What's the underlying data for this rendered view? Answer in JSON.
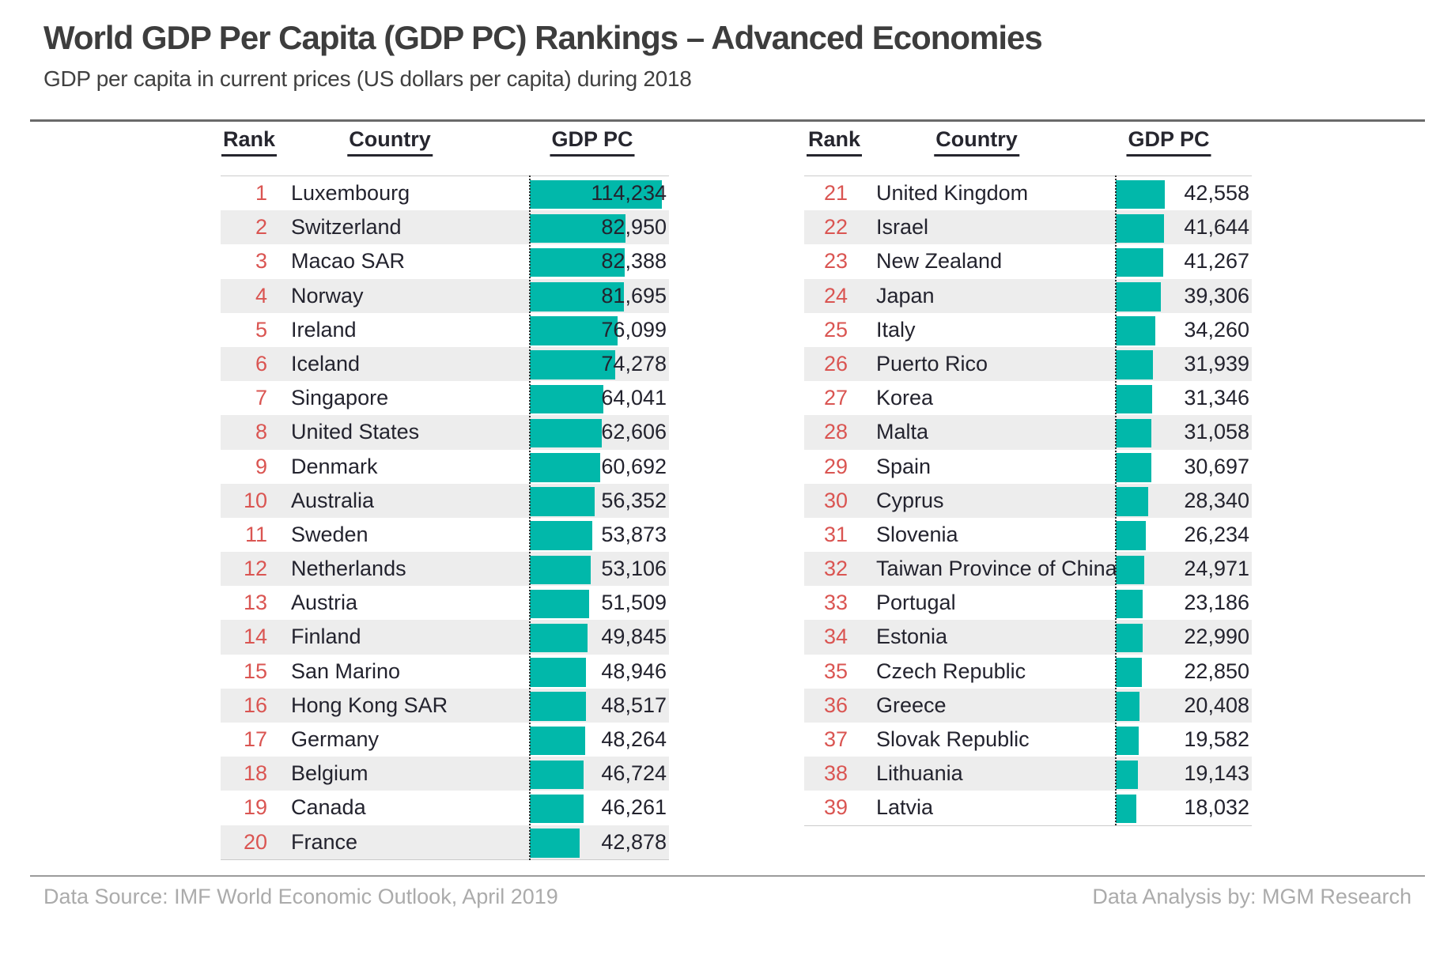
{
  "title": "World GDP Per Capita (GDP PC) Rankings – Advanced Economies",
  "subtitle": "GDP per capita in current prices (US dollars per capita) during 2018",
  "table_headers": {
    "rank": "Rank",
    "country": "Country",
    "gdp_pc": "GDP PC"
  },
  "footer": {
    "source": "Data Source: IMF World Economic Outlook, April 2019",
    "analysis": "Data Analysis by: MGM Research"
  },
  "colors": {
    "bar": "#01B8AA",
    "rank_number": "#DA5552",
    "row_stripe": "#EDEDED",
    "text": "#23232E",
    "title_text": "#3D3D3D",
    "footer_text": "#ABABAB"
  },
  "chart_data": {
    "type": "bar",
    "orientation": "horizontal",
    "title": "World GDP Per Capita (GDP PC) Rankings – Advanced Economies",
    "subtitle": "GDP per capita in current prices (US dollars per capita) during 2018",
    "value_label": "GDP PC",
    "unit": "US dollars per capita",
    "year": "2018",
    "axis_max": 120000,
    "grid": false,
    "legend": false,
    "columns": [
      {
        "name": "ranks-1-20",
        "rows": [
          {
            "rank": 1,
            "country": "Luxembourg",
            "value": 114234
          },
          {
            "rank": 2,
            "country": "Switzerland",
            "value": 82950
          },
          {
            "rank": 3,
            "country": "Macao SAR",
            "value": 82388
          },
          {
            "rank": 4,
            "country": "Norway",
            "value": 81695
          },
          {
            "rank": 5,
            "country": "Ireland",
            "value": 76099
          },
          {
            "rank": 6,
            "country": "Iceland",
            "value": 74278
          },
          {
            "rank": 7,
            "country": "Singapore",
            "value": 64041
          },
          {
            "rank": 8,
            "country": "United States",
            "value": 62606
          },
          {
            "rank": 9,
            "country": "Denmark",
            "value": 60692
          },
          {
            "rank": 10,
            "country": "Australia",
            "value": 56352
          },
          {
            "rank": 11,
            "country": "Sweden",
            "value": 53873
          },
          {
            "rank": 12,
            "country": "Netherlands",
            "value": 53106
          },
          {
            "rank": 13,
            "country": "Austria",
            "value": 51509
          },
          {
            "rank": 14,
            "country": "Finland",
            "value": 49845
          },
          {
            "rank": 15,
            "country": "San Marino",
            "value": 48946
          },
          {
            "rank": 16,
            "country": "Hong Kong SAR",
            "value": 48517
          },
          {
            "rank": 17,
            "country": "Germany",
            "value": 48264
          },
          {
            "rank": 18,
            "country": "Belgium",
            "value": 46724
          },
          {
            "rank": 19,
            "country": "Canada",
            "value": 46261
          },
          {
            "rank": 20,
            "country": "France",
            "value": 42878
          }
        ]
      },
      {
        "name": "ranks-21-39",
        "rows": [
          {
            "rank": 21,
            "country": "United Kingdom",
            "value": 42558
          },
          {
            "rank": 22,
            "country": "Israel",
            "value": 41644
          },
          {
            "rank": 23,
            "country": "New Zealand",
            "value": 41267
          },
          {
            "rank": 24,
            "country": "Japan",
            "value": 39306
          },
          {
            "rank": 25,
            "country": "Italy",
            "value": 34260
          },
          {
            "rank": 26,
            "country": "Puerto Rico",
            "value": 31939
          },
          {
            "rank": 27,
            "country": "Korea",
            "value": 31346
          },
          {
            "rank": 28,
            "country": "Malta",
            "value": 31058
          },
          {
            "rank": 29,
            "country": "Spain",
            "value": 30697
          },
          {
            "rank": 30,
            "country": "Cyprus",
            "value": 28340
          },
          {
            "rank": 31,
            "country": "Slovenia",
            "value": 26234
          },
          {
            "rank": 32,
            "country": "Taiwan Province of China",
            "value": 24971
          },
          {
            "rank": 33,
            "country": "Portugal",
            "value": 23186
          },
          {
            "rank": 34,
            "country": "Estonia",
            "value": 22990
          },
          {
            "rank": 35,
            "country": "Czech Republic",
            "value": 22850
          },
          {
            "rank": 36,
            "country": "Greece",
            "value": 20408
          },
          {
            "rank": 37,
            "country": "Slovak Republic",
            "value": 19582
          },
          {
            "rank": 38,
            "country": "Lithuania",
            "value": 19143
          },
          {
            "rank": 39,
            "country": "Latvia",
            "value": 18032
          }
        ]
      }
    ]
  }
}
